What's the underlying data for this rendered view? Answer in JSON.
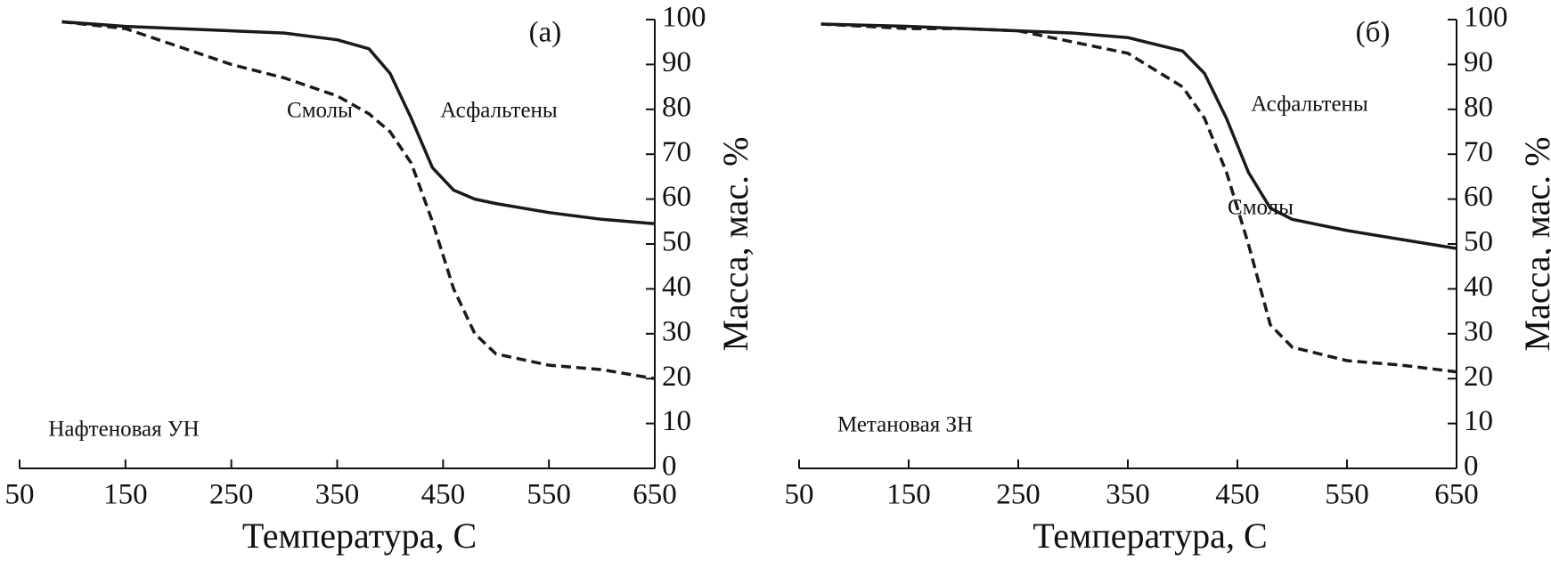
{
  "chart_data": [
    {
      "type": "line",
      "panel_label": "(а)",
      "annotation": "Нафтеновая УН",
      "xlabel": "Температура, С",
      "ylabel": "Масса, мас. %",
      "x": [
        90,
        150,
        200,
        250,
        300,
        350,
        380,
        400,
        420,
        440,
        460,
        480,
        500,
        550,
        600,
        650
      ],
      "series": [
        {
          "name": "Асфальтены",
          "color": "#1a1a1a",
          "dash": "solid",
          "values": [
            99.5,
            98.5,
            98,
            97.5,
            97,
            95.5,
            93.5,
            88,
            78,
            67,
            62,
            60,
            59,
            57,
            55.5,
            54.5
          ]
        },
        {
          "name": "Смолы",
          "color": "#1a1a1a",
          "dash": "dashed",
          "values": [
            99.5,
            98,
            94,
            90,
            87,
            83,
            79,
            75,
            68,
            55,
            40,
            30,
            25.5,
            23,
            22,
            20
          ]
        }
      ],
      "xlim": [
        50,
        650
      ],
      "xticks": [
        50,
        150,
        250,
        350,
        450,
        550,
        650
      ],
      "ylim": [
        0,
        100
      ],
      "yticks": [
        0,
        10,
        20,
        30,
        40,
        50,
        60,
        70,
        80,
        90,
        100
      ]
    },
    {
      "type": "line",
      "panel_label": "(б)",
      "annotation": "Метановая ЗН",
      "xlabel": "Температура, С",
      "ylabel": "Масса, мас. %",
      "x": [
        70,
        150,
        200,
        250,
        300,
        350,
        400,
        420,
        440,
        460,
        480,
        500,
        550,
        600,
        650
      ],
      "series": [
        {
          "name": "Асфальтены",
          "color": "#1a1a1a",
          "dash": "solid",
          "values": [
            99,
            98.5,
            98,
            97.5,
            97,
            96,
            93,
            88,
            78,
            66,
            58,
            55.5,
            53,
            51,
            49
          ]
        },
        {
          "name": "Смолы",
          "color": "#1a1a1a",
          "dash": "dashed",
          "values": [
            99,
            98,
            98,
            97.5,
            95,
            92.5,
            85,
            78,
            66,
            50,
            32,
            27,
            24,
            23,
            21.5
          ]
        }
      ],
      "xlim": [
        50,
        650
      ],
      "xticks": [
        50,
        150,
        250,
        350,
        450,
        550,
        650
      ],
      "ylim": [
        0,
        100
      ],
      "yticks": [
        0,
        10,
        20,
        30,
        40,
        50,
        60,
        70,
        80,
        90,
        100
      ]
    }
  ]
}
